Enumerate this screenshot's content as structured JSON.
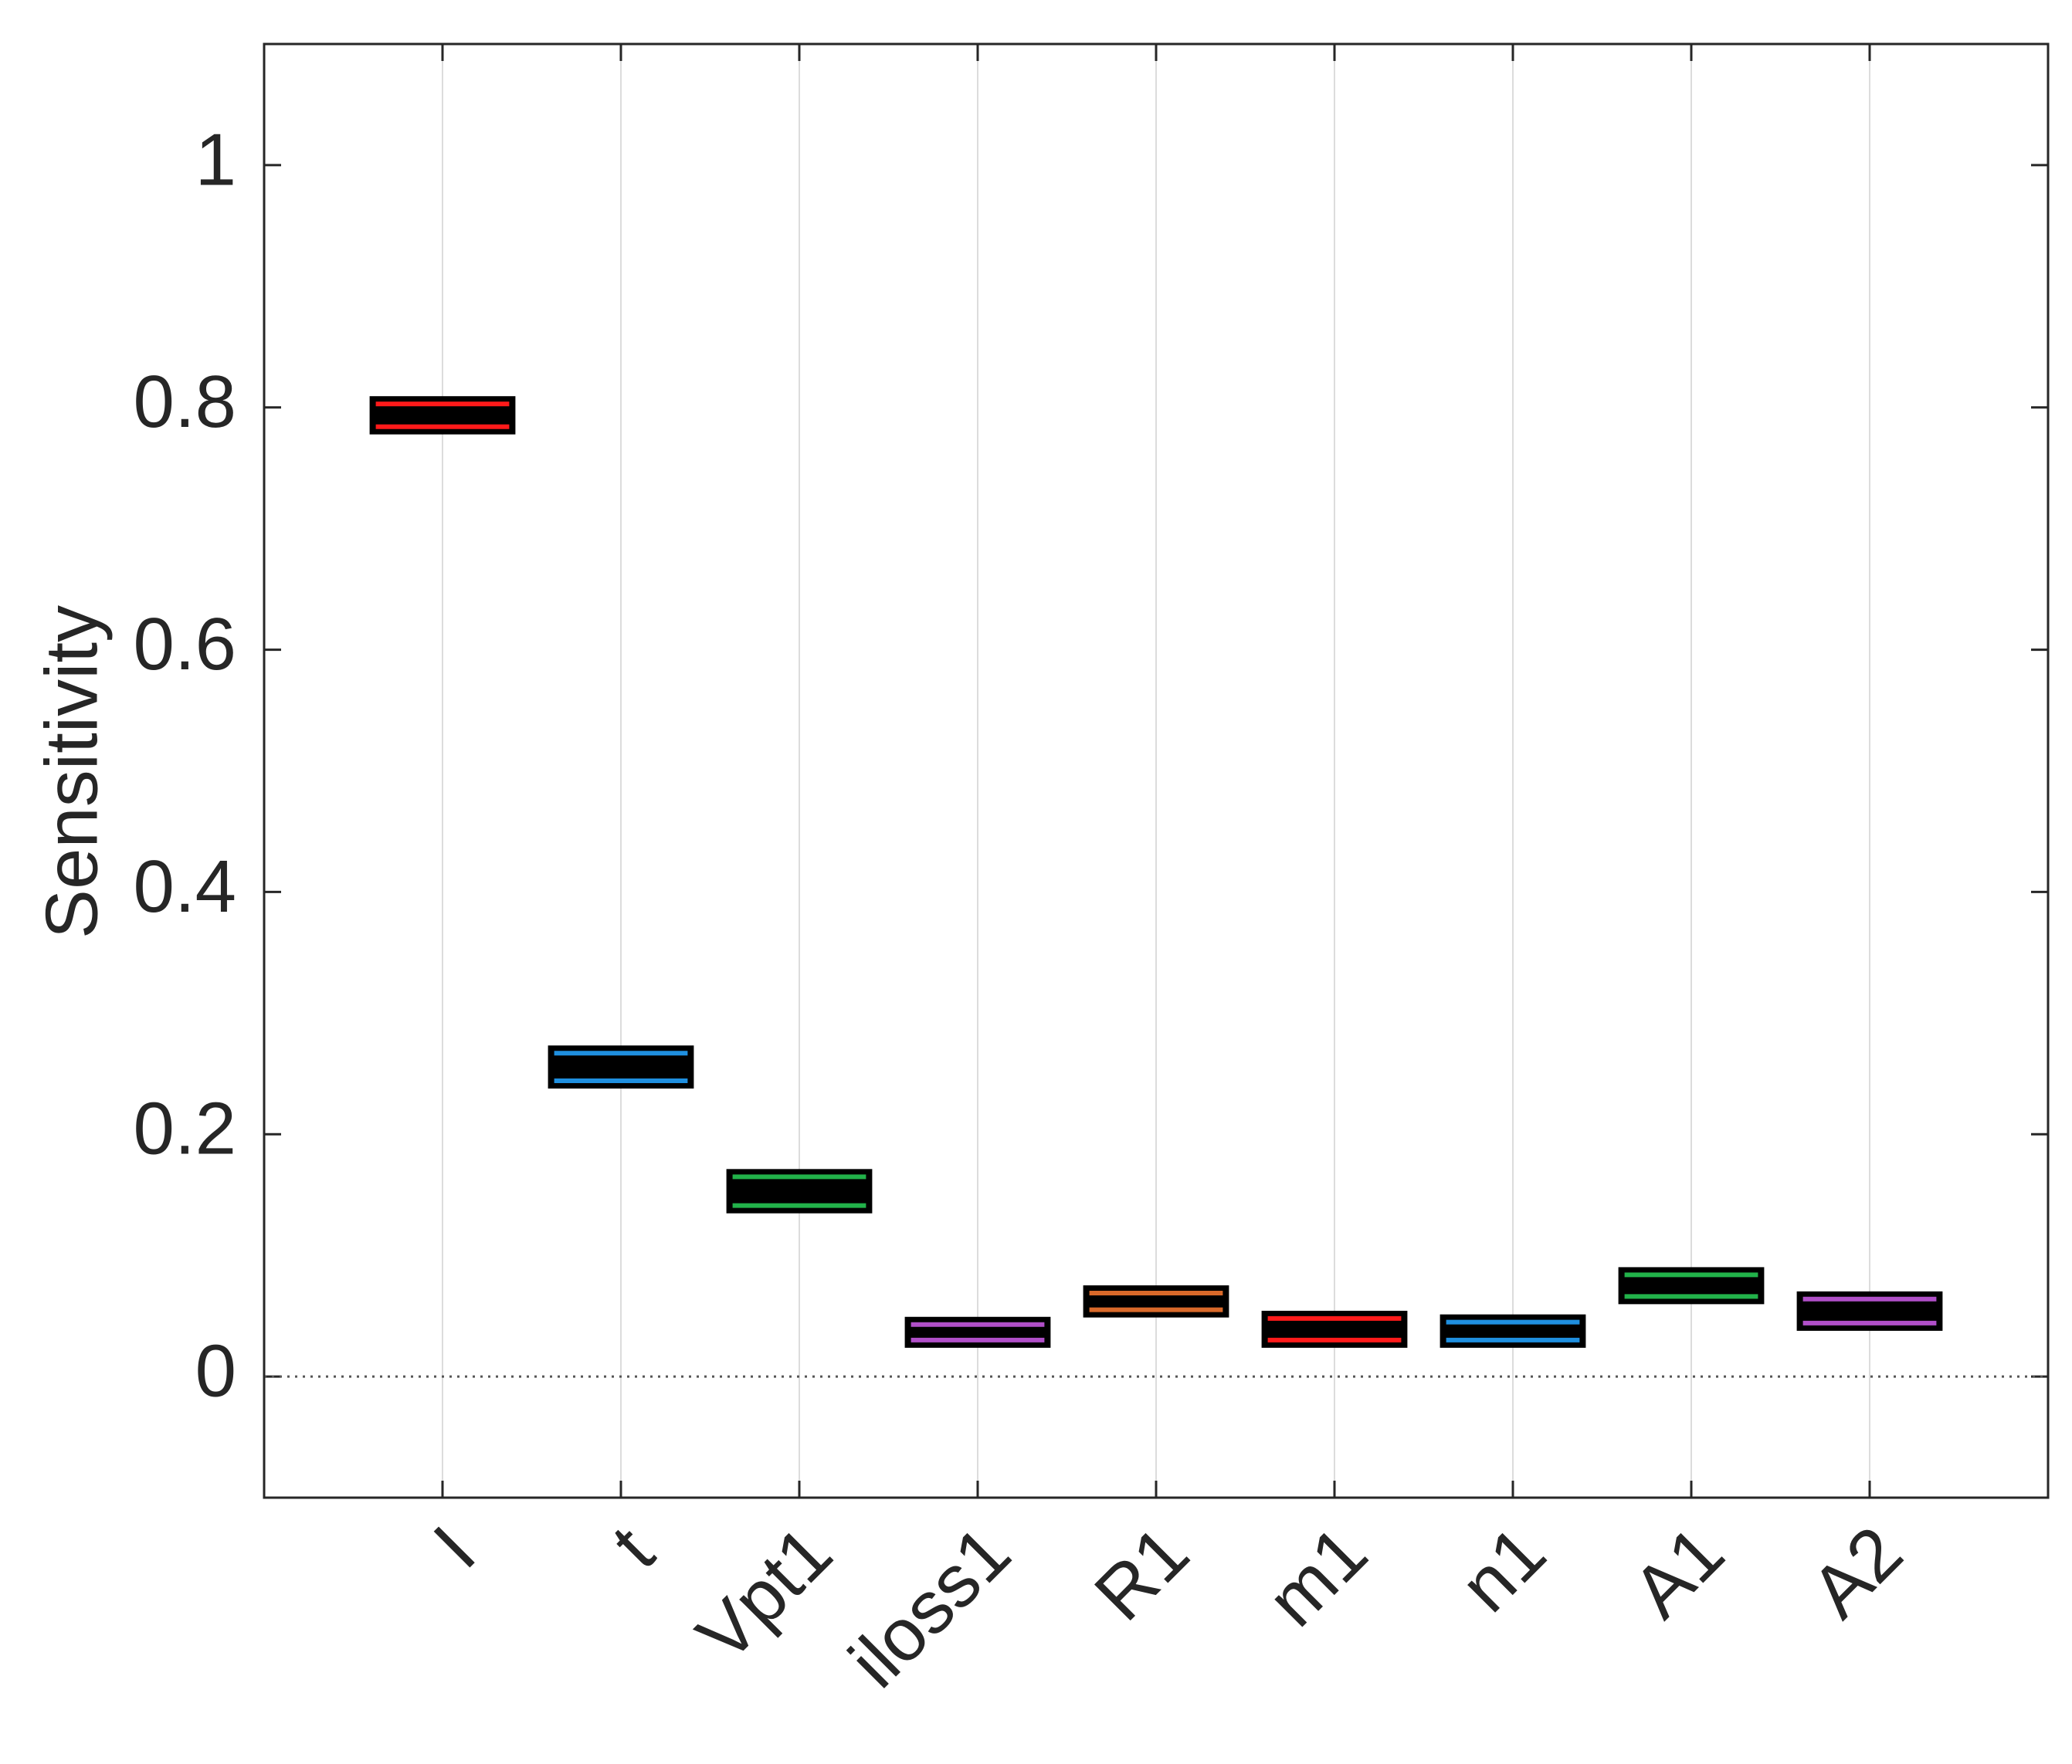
{
  "chart_data": {
    "type": "box",
    "y_label": "Sensitivity",
    "categories": [
      "I",
      "t",
      "Vpt1",
      "iloss1",
      "R1",
      "m1",
      "n1",
      "A1",
      "A2"
    ],
    "x": [
      1,
      2,
      3,
      4,
      5,
      6,
      7,
      8,
      9
    ],
    "xlim": [
      0,
      10
    ],
    "q1": [
      0.779,
      0.239,
      0.136,
      0.025,
      0.05,
      0.025,
      0.025,
      0.061,
      0.039
    ],
    "median": [
      0.793,
      0.256,
      0.152,
      0.037,
      0.062,
      0.039,
      0.038,
      0.075,
      0.054
    ],
    "q3": [
      0.808,
      0.272,
      0.17,
      0.048,
      0.074,
      0.053,
      0.05,
      0.089,
      0.069
    ],
    "colors": [
      "#ff1a1a",
      "#1f8fdf",
      "#22b24a",
      "#b04fc8",
      "#d9692a",
      "#ff1a1a",
      "#1f8fdf",
      "#22b24a",
      "#b04fc8"
    ],
    "ylim": [
      -0.1,
      1.1
    ],
    "yticks": [
      0,
      0.2,
      0.4,
      0.6,
      0.8,
      1
    ],
    "reference_line": 0,
    "grid": "x"
  }
}
